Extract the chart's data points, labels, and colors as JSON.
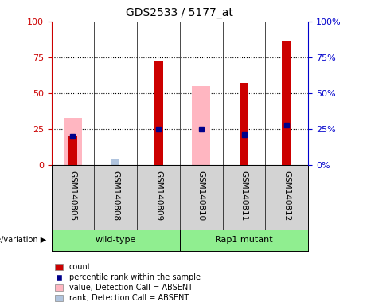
{
  "title": "GDS2533 / 5177_at",
  "samples": [
    "GSM140805",
    "GSM140808",
    "GSM140809",
    "GSM140810",
    "GSM140811",
    "GSM140812"
  ],
  "count_values": [
    20,
    0,
    72,
    0,
    57,
    86
  ],
  "percentile_rank": [
    20,
    0,
    25,
    25,
    21,
    28
  ],
  "has_count": [
    true,
    false,
    true,
    false,
    true,
    true
  ],
  "has_percentile": [
    true,
    false,
    true,
    true,
    true,
    true
  ],
  "absent_value": [
    33,
    0,
    0,
    55,
    0,
    0
  ],
  "has_absent_value": [
    true,
    false,
    false,
    true,
    false,
    false
  ],
  "absent_rank": [
    0,
    4,
    0,
    0,
    0,
    0
  ],
  "has_absent_rank": [
    false,
    true,
    false,
    false,
    false,
    false
  ],
  "ylim": [
    0,
    100
  ],
  "yticks": [
    0,
    25,
    50,
    75,
    100
  ],
  "bar_color_count": "#cc0000",
  "bar_color_absent_value": "#ffb6c1",
  "dot_color_percentile": "#00008b",
  "bar_color_absent_rank": "#b0c4de",
  "left_axis_color": "#cc0000",
  "right_axis_color": "#0000cc",
  "label_bg": "#d3d3d3",
  "group_color": "#90ee90",
  "group_labels": [
    "wild-type",
    "Rap1 mutant"
  ],
  "group_ranges": [
    [
      0,
      2
    ],
    [
      3,
      5
    ]
  ],
  "legend_items": [
    {
      "color": "#cc0000",
      "label": "count",
      "type": "patch"
    },
    {
      "color": "#00008b",
      "label": "percentile rank within the sample",
      "type": "square"
    },
    {
      "color": "#ffb6c1",
      "label": "value, Detection Call = ABSENT",
      "type": "patch"
    },
    {
      "color": "#b0c4de",
      "label": "rank, Detection Call = ABSENT",
      "type": "patch"
    }
  ]
}
